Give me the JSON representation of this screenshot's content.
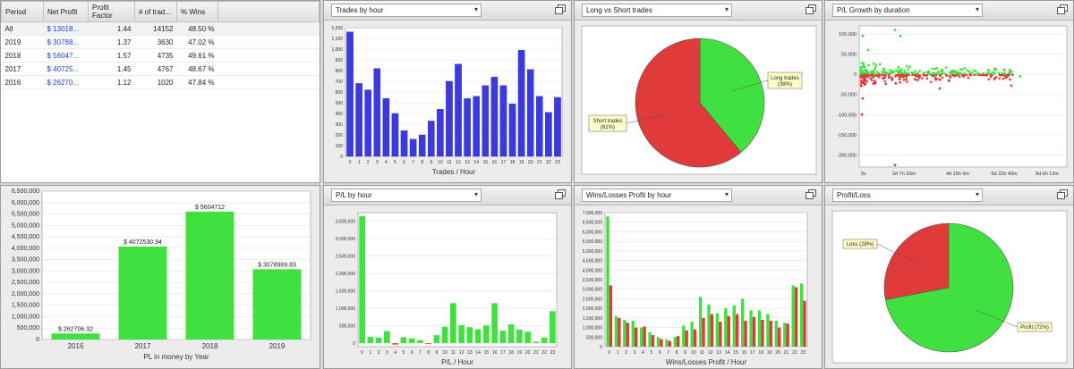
{
  "table": {
    "columns": [
      "Period",
      "Net Profit",
      "Profit Factor",
      "# of trad...",
      "% Wins"
    ],
    "rows": [
      {
        "period": "All",
        "net_profit": "$ 13018...",
        "profit_factor": "1.44",
        "trades": "14152",
        "wins": "48.50 %"
      },
      {
        "period": "2019",
        "net_profit": "$ 30788...",
        "profit_factor": "1.37",
        "trades": "3630",
        "wins": "47.02 %"
      },
      {
        "period": "2018",
        "net_profit": "$ 56047...",
        "profit_factor": "1.57",
        "trades": "4735",
        "wins": "49.61 %"
      },
      {
        "period": "2017",
        "net_profit": "$ 40725...",
        "profit_factor": "1.45",
        "trades": "4767",
        "wins": "48.67 %"
      },
      {
        "period": "2016",
        "net_profit": "$ 26270...",
        "profit_factor": "1.12",
        "trades": "1020",
        "wins": "47.84 %"
      }
    ]
  },
  "panels": {
    "trades_by_hour": {
      "selector": "Trades by hour"
    },
    "long_short": {
      "selector": "Long vs Short trades"
    },
    "pl_growth": {
      "selector": "P/L Growth by duration"
    },
    "pl_by_hour": {
      "selector": "P/L by hour"
    },
    "wins_losses": {
      "selector": "Wins/Losses Profit by hour"
    },
    "profit_loss": {
      "selector": "Profit/Loss"
    }
  },
  "colors": {
    "blue": "#3a3ae0",
    "green": "#3fe03f",
    "red": "#e03a3a",
    "callout": "#ffffc8"
  },
  "icons": {
    "maximize": "maximize-icon",
    "dropdown": "chevron-down-icon"
  },
  "chart_data": [
    {
      "id": "trades_by_hour",
      "type": "bar",
      "categories": [
        "0",
        "1",
        "2",
        "3",
        "4",
        "5",
        "6",
        "7",
        "8",
        "9",
        "10",
        "11",
        "12",
        "13",
        "14",
        "15",
        "16",
        "17",
        "18",
        "19",
        "20",
        "21",
        "22",
        "23"
      ],
      "values": [
        1160,
        680,
        620,
        820,
        540,
        400,
        240,
        160,
        200,
        330,
        440,
        700,
        860,
        540,
        560,
        660,
        740,
        660,
        490,
        990,
        810,
        560,
        410,
        550
      ],
      "xlabel": "Trades / Hour",
      "ylim": [
        0,
        1200
      ],
      "yticks": [
        "0",
        "100",
        "200",
        "300",
        "400",
        "500",
        "600",
        "700",
        "800",
        "900",
        "1,000",
        "1,100",
        "1,200"
      ]
    },
    {
      "id": "long_short",
      "type": "pie",
      "slices": [
        {
          "label": "Long trades",
          "pct": "(39%)",
          "value": 39
        },
        {
          "label": "Short trades",
          "pct": "(61%)",
          "value": 61
        }
      ]
    },
    {
      "id": "pl_growth",
      "type": "scatter",
      "ylim": [
        -230000,
        120000
      ],
      "yticks": [
        "100,000",
        "50,000",
        "0",
        "-50,000",
        "-100,000",
        "-150,000",
        "-200,000"
      ],
      "xticks": [
        "0s",
        "2d 7h 33m",
        "4d 15h 6m",
        "6d 22h 40m",
        "9d 6h 13m"
      ]
    },
    {
      "id": "pl_by_year",
      "type": "bar",
      "categories": [
        "2016",
        "2017",
        "2018",
        "2019"
      ],
      "values": [
        262706.32,
        4072530.94,
        5604712,
        3078969.83
      ],
      "data_labels": [
        "$ 262706.32",
        "$ 4072530.94",
        "$ 5604712",
        "$ 3078969.83"
      ],
      "xlabel": "PL in money by Year",
      "ylim": [
        0,
        6500000
      ],
      "yticks": [
        "0",
        "500,000",
        "1,000,000",
        "1,500,000",
        "2,000,000",
        "2,500,000",
        "3,000,000",
        "3,500,000",
        "4,000,000",
        "4,500,000",
        "5,000,000",
        "5,500,000",
        "6,000,000",
        "6,500,000"
      ]
    },
    {
      "id": "pl_by_hour",
      "type": "bar",
      "categories": [
        "0",
        "1",
        "2",
        "3",
        "4",
        "5",
        "6",
        "7",
        "8",
        "9",
        "10",
        "11",
        "12",
        "13",
        "14",
        "15",
        "16",
        "17",
        "18",
        "19",
        "20",
        "21",
        "22",
        "23"
      ],
      "values": [
        3650000,
        180000,
        160000,
        350000,
        -40000,
        170000,
        140000,
        90000,
        -20000,
        230000,
        470000,
        1150000,
        520000,
        460000,
        400000,
        510000,
        1150000,
        360000,
        540000,
        390000,
        330000,
        40000,
        160000,
        920000
      ],
      "xlabel": "P/L / Hour",
      "ylim": [
        -100000,
        3750000
      ],
      "yticks": [
        "0",
        "500,000",
        "1,000,000",
        "1,500,000",
        "2,000,000",
        "2,500,000",
        "3,000,000",
        "3,500,000"
      ]
    },
    {
      "id": "wins_losses_by_hour",
      "type": "bar",
      "categories": [
        "0",
        "1",
        "2",
        "3",
        "4",
        "5",
        "6",
        "7",
        "8",
        "9",
        "10",
        "11",
        "12",
        "13",
        "14",
        "15",
        "16",
        "17",
        "18",
        "19",
        "20",
        "21",
        "22",
        "23"
      ],
      "series": [
        {
          "values": [
            6800000,
            1600000,
            1400000,
            1350000,
            1000000,
            750000,
            500000,
            380000,
            500000,
            1100000,
            1300000,
            2600000,
            2200000,
            1750000,
            2000000,
            2150000,
            2500000,
            1900000,
            1900000,
            1700000,
            1350000,
            1250000,
            3200000,
            3300000
          ]
        },
        {
          "values": [
            3200000,
            1500000,
            1250000,
            1000000,
            1050000,
            600000,
            400000,
            300000,
            550000,
            850000,
            900000,
            1500000,
            1700000,
            1300000,
            1600000,
            1700000,
            1350000,
            1550000,
            1400000,
            1350000,
            1000000,
            1200000,
            3100000,
            2400000
          ]
        }
      ],
      "xlabel": "Wins/Losses Profit / Hour",
      "ylim": [
        0,
        7000000
      ],
      "yticks": [
        "0",
        "500,000",
        "1,000,000",
        "1,500,000",
        "2,000,000",
        "2,500,000",
        "3,000,000",
        "3,500,000",
        "4,000,000",
        "4,500,000",
        "5,000,000",
        "5,500,000",
        "6,000,000",
        "6,500,000",
        "7,000,000"
      ]
    },
    {
      "id": "profit_loss",
      "type": "pie",
      "slices": [
        {
          "label": "Loss",
          "pct": "(28%)",
          "value": 28
        },
        {
          "label": "Profit",
          "pct": "(72%)",
          "value": 72
        }
      ]
    }
  ]
}
